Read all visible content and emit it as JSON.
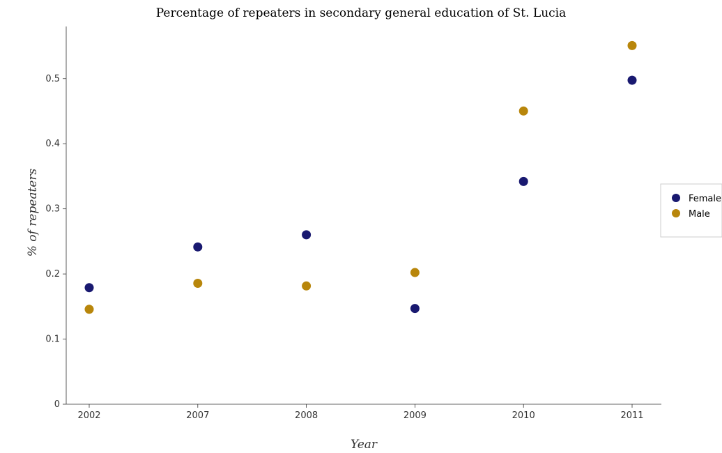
{
  "chart_data": {
    "type": "scatter",
    "title": "Percentage of repeaters in secondary general education of St. Lucia",
    "xlabel": "Year",
    "ylabel": "% of repeaters",
    "categories": [
      "2002",
      "2007",
      "2008",
      "2009",
      "2010",
      "2011"
    ],
    "ylim": [
      0,
      0.58
    ],
    "yticks": [
      "0",
      "0.1",
      "0.2",
      "0.3",
      "0.4",
      "0.5"
    ],
    "ytick_values": [
      0,
      0.1,
      0.2,
      0.3,
      0.4,
      0.5
    ],
    "grid": false,
    "legend_position": "right",
    "series": [
      {
        "name": "Female",
        "color": "#191970",
        "values": [
          0.179,
          0.2415,
          0.2602,
          0.147,
          0.342,
          0.4975
        ]
      },
      {
        "name": "Male",
        "color": "#b8860b",
        "values": [
          0.1458,
          0.1857,
          0.1816,
          0.2022,
          0.4502,
          0.5507
        ]
      }
    ]
  }
}
